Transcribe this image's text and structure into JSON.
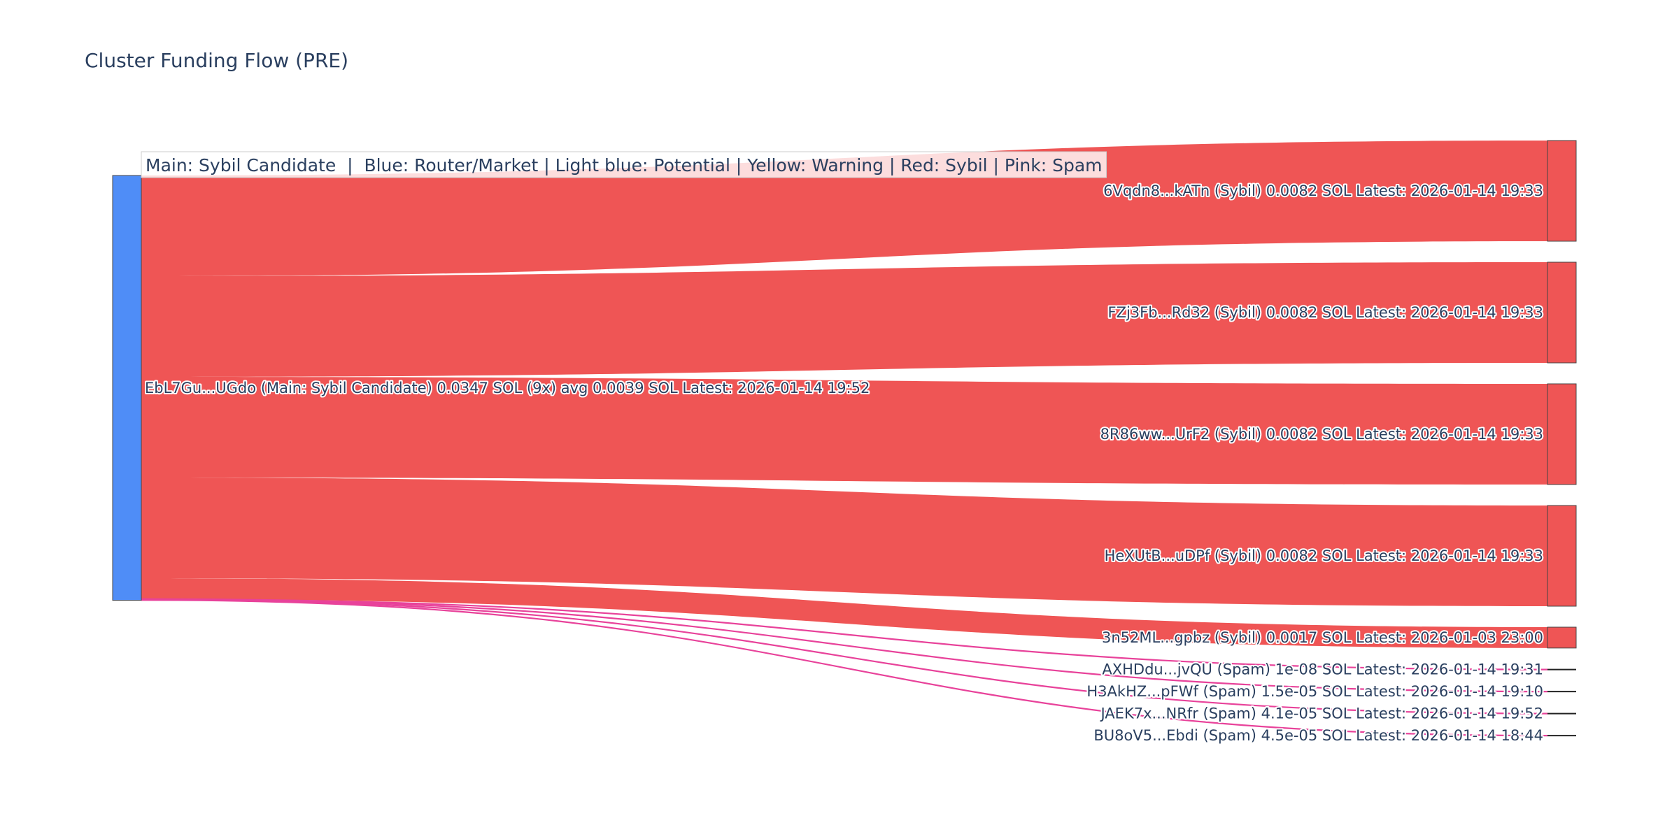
{
  "title": "Cluster Funding Flow (PRE)",
  "legend_note": "Main: Sybil Candidate  |  Blue: Router/Market | Light blue: Potential | Yellow: Warning | Red: Sybil | Pink: Spam",
  "colors": {
    "main": "#4f8df7",
    "sybil": "#ef5555",
    "spam": "#e8429a",
    "node_border": "#444444",
    "text": "#2a3f5f"
  },
  "chart_data": {
    "type": "sankey",
    "source": {
      "id": "EbL7Gu...UGdo",
      "category": "Main: Sybil Candidate",
      "label": "EbL7Gu...UGdo (Main: Sybil Candidate) 0.0347 SOL (9x) avg 0.0039 SOL Latest: 2026-01-14 19:52"
    },
    "targets": [
      {
        "id": "6Vqdn8...kATn",
        "category": "Sybil",
        "value": 0.0082,
        "label": "6Vqdn8...kATn (Sybil) 0.0082 SOL Latest: 2026-01-14 19:33"
      },
      {
        "id": "FZj3Fb...Rd32",
        "category": "Sybil",
        "value": 0.0082,
        "label": "FZj3Fb...Rd32 (Sybil) 0.0082 SOL Latest: 2026-01-14 19:33"
      },
      {
        "id": "8R86ww...UrF2",
        "category": "Sybil",
        "value": 0.0082,
        "label": "8R86ww...UrF2 (Sybil) 0.0082 SOL Latest: 2026-01-14 19:33"
      },
      {
        "id": "HeXUtB...uDPf",
        "category": "Sybil",
        "value": 0.0082,
        "label": "HeXUtB...uDPf (Sybil) 0.0082 SOL Latest: 2026-01-14 19:33"
      },
      {
        "id": "3n52ML...gpbz",
        "category": "Sybil",
        "value": 0.0017,
        "label": "3n52ML...gpbz (Sybil) 0.0017 SOL Latest: 2026-01-03 23:00"
      },
      {
        "id": "AXHDdu...jvQU",
        "category": "Spam",
        "value": 1e-08,
        "label": "AXHDdu...jvQU (Spam) 1e-08 SOL Latest: 2026-01-14 19:31"
      },
      {
        "id": "H3AkHZ...pFWf",
        "category": "Spam",
        "value": 1.5e-05,
        "label": "H3AkHZ...pFWf (Spam) 1.5e-05 SOL Latest: 2026-01-14 19:10"
      },
      {
        "id": "JAEK7x...NRfr",
        "category": "Spam",
        "value": 4.1e-05,
        "label": "JAEK7x...NRfr (Spam) 4.1e-05 SOL Latest: 2026-01-14 19:52"
      },
      {
        "id": "BU8oV5...Ebdi",
        "category": "Spam",
        "value": 4.5e-05,
        "label": "BU8oV5...Ebdi (Spam) 4.5e-05 SOL Latest: 2026-01-14 18:44"
      }
    ]
  }
}
